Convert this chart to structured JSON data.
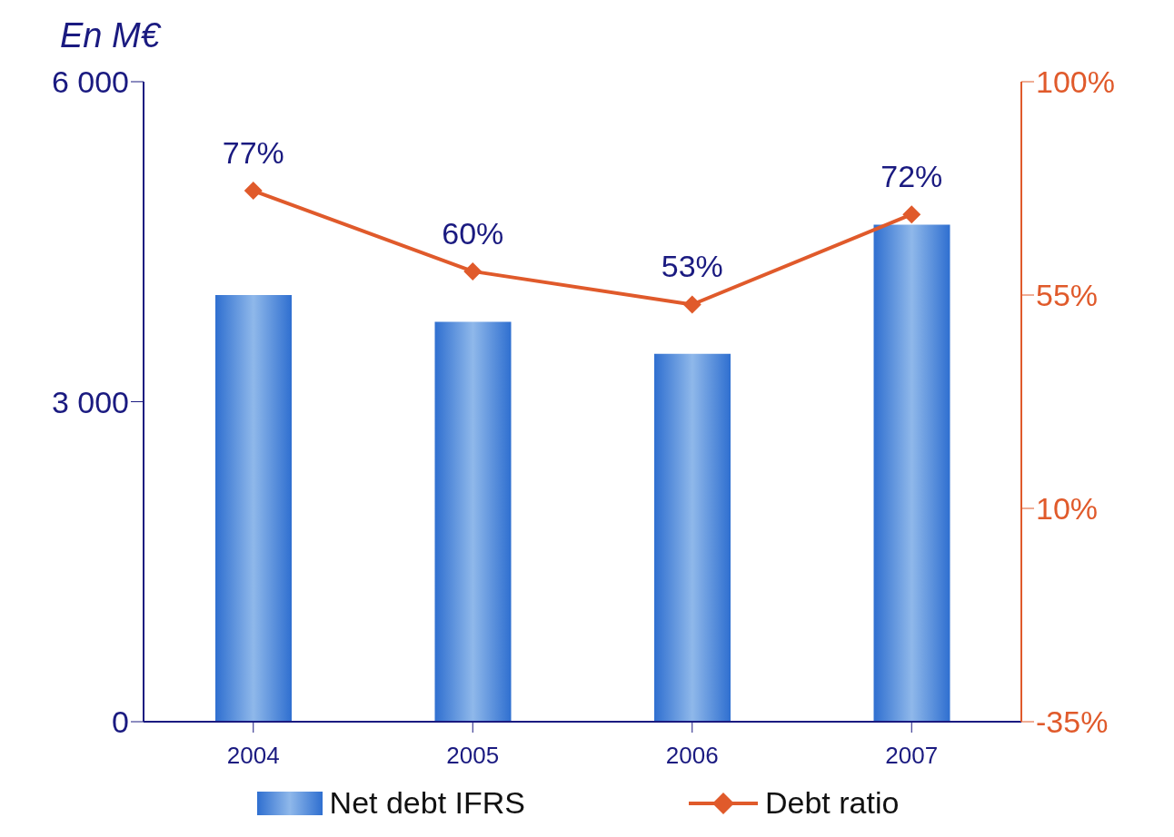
{
  "chart_data": {
    "type": "bar",
    "ylabel": "En M€",
    "categories": [
      "2004",
      "2005",
      "2006",
      "2007"
    ],
    "series": [
      {
        "name": "Net debt IFRS",
        "color": "#2f6fd0",
        "values": [
          4000,
          3750,
          3450,
          4660
        ]
      },
      {
        "name": "Debt ratio",
        "type": "line",
        "axis": "y2",
        "color": "#e05a2b",
        "values": [
          77,
          60,
          53,
          72
        ],
        "value_labels": [
          "77%",
          "60%",
          "53%",
          "72%"
        ],
        "marker": "diamond"
      }
    ],
    "ylim": [
      0,
      6000
    ],
    "yticks": [
      0,
      {
        "value": 3000,
        "label": "3 000"
      },
      {
        "value": 6000,
        "label": "6 000"
      }
    ],
    "y2lim": [
      -35,
      100
    ],
    "y2ticks": [
      {
        "value": -35,
        "label": "-35%"
      },
      {
        "value": 10,
        "label": "10%"
      },
      {
        "value": 55,
        "label": "55%"
      },
      {
        "value": 100,
        "label": "100%"
      }
    ],
    "grid": false,
    "legend": "bottom"
  }
}
